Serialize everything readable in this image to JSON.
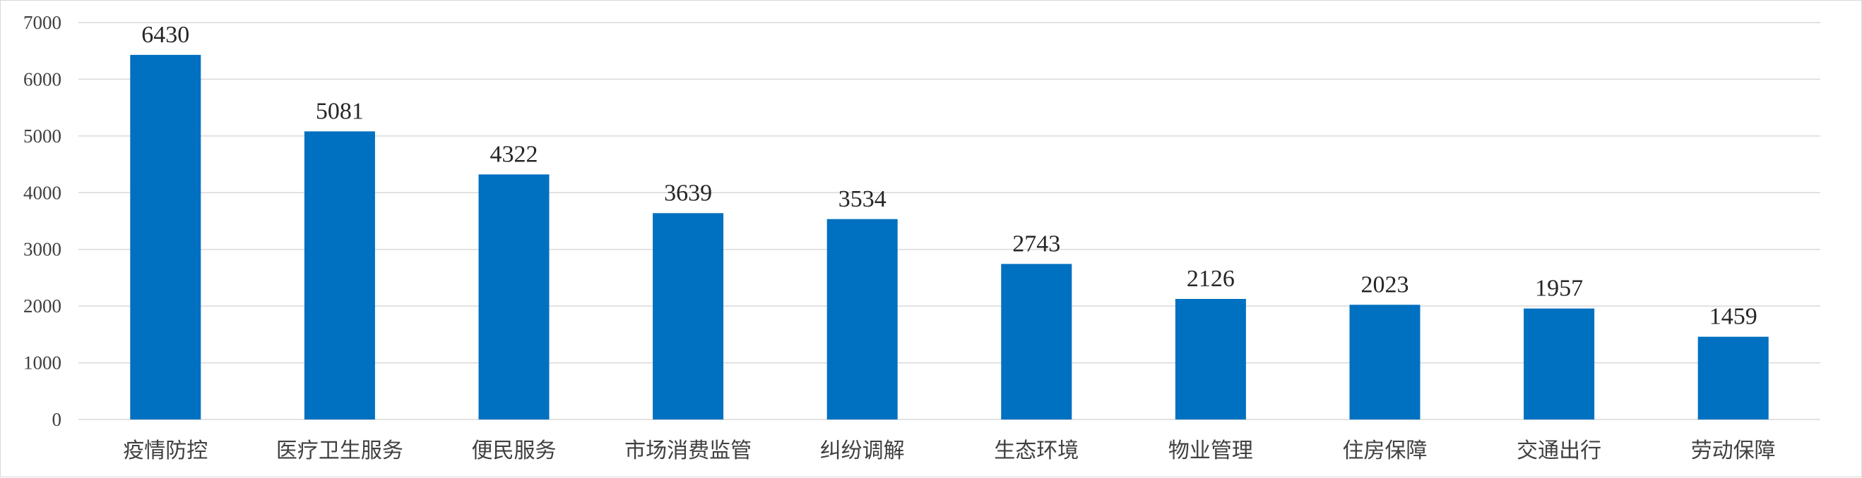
{
  "chart_data": {
    "type": "bar",
    "categories": [
      "疫情防控",
      "医疗卫生服务",
      "便民服务",
      "市场消费监管",
      "纠纷调解",
      "生态环境",
      "物业管理",
      "住房保障",
      "交通出行",
      "劳动保障"
    ],
    "values": [
      6430,
      5081,
      4322,
      3639,
      3534,
      2743,
      2126,
      2023,
      1957,
      1459
    ],
    "data_labels": [
      "6430",
      "5081",
      "4322",
      "3639",
      "3534",
      "2743",
      "2126",
      "2023",
      "1957",
      "1459"
    ],
    "y_ticks": [
      0,
      1000,
      2000,
      3000,
      4000,
      5000,
      6000,
      7000
    ],
    "y_tick_labels": [
      "0",
      "1000",
      "2000",
      "3000",
      "4000",
      "5000",
      "6000",
      "7000"
    ],
    "ylim": [
      0,
      7000
    ],
    "grid": true,
    "legend": "none",
    "colors": {
      "bar": "#0070C0",
      "grid": "#d9d9d9",
      "axis": "#d9d9d9"
    }
  }
}
